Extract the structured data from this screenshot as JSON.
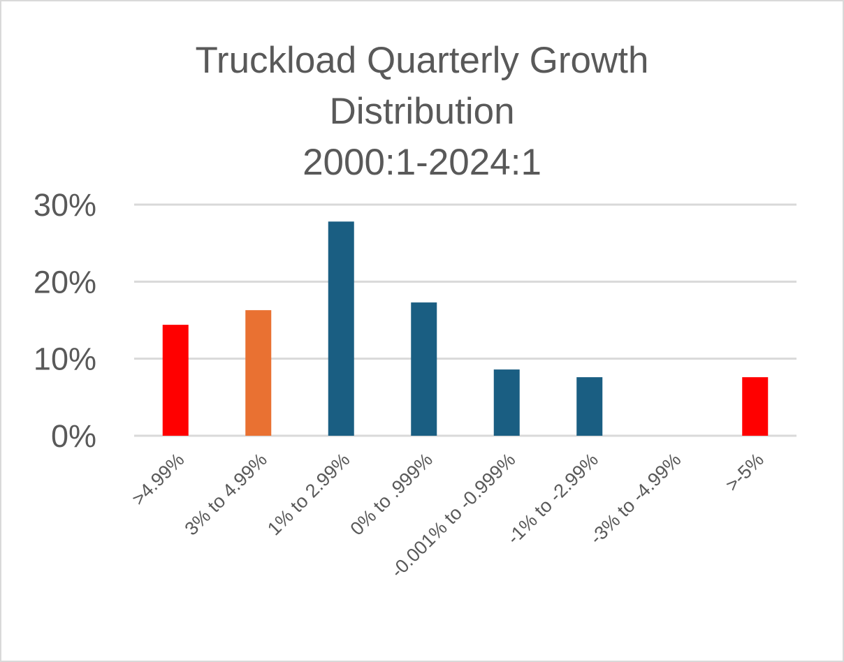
{
  "chart_data": {
    "type": "bar",
    "title_lines": [
      "Truckload Quarterly Growth",
      "Distribution",
      "2000:1-2024:1"
    ],
    "xlabel": "",
    "ylabel": "",
    "categories": [
      ">4.99%",
      "3% to 4.99%",
      "1% to 2.99%",
      "0% to .999%",
      "-0.001% to -0.999%",
      "-1% to -2.99%",
      "-3% to -4.99%",
      ">-5%"
    ],
    "values": [
      14.4,
      16.3,
      27.8,
      17.3,
      8.6,
      7.6,
      0,
      7.6
    ],
    "bar_colors": [
      "#ff0000",
      "#e97132",
      "#1a5e82",
      "#1a5e82",
      "#1a5e82",
      "#1a5e82",
      "#1a5e82",
      "#ff0000"
    ],
    "ylim": [
      0,
      30
    ],
    "yticks": [
      0,
      10,
      20,
      30
    ],
    "ytick_labels": [
      "0%",
      "10%",
      "20%",
      "30%"
    ],
    "grid": true,
    "gridline_color": "#d9d9d9",
    "legend": "none"
  }
}
